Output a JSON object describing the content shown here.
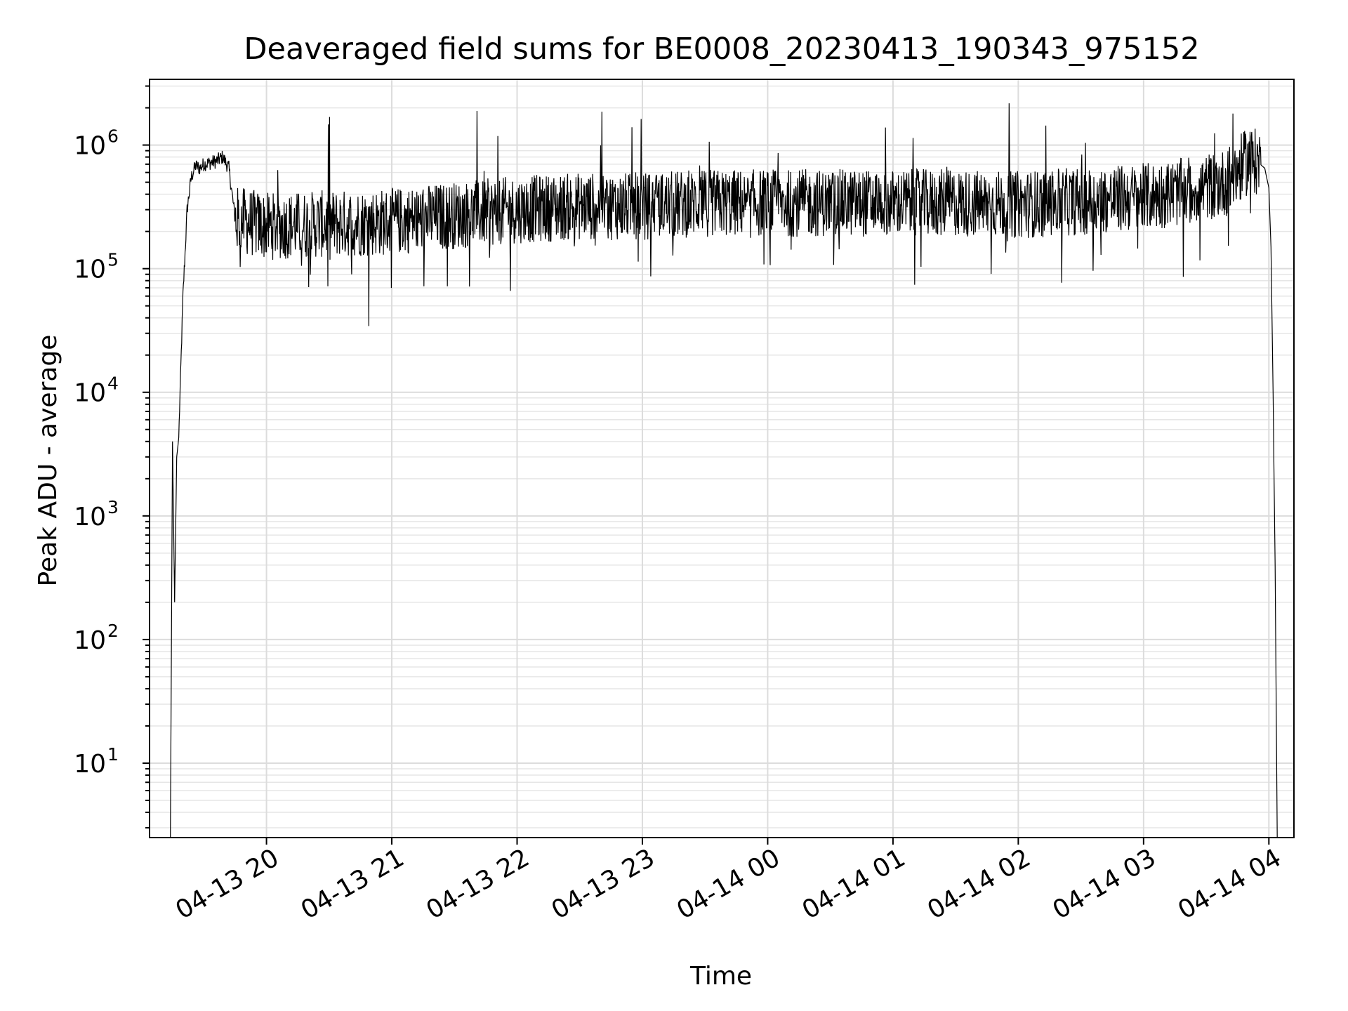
{
  "chart_data": {
    "type": "line",
    "title": "Deaveraged field sums for BE0008_20230413_190343_975152",
    "xlabel": "Time",
    "ylabel": "Peak ADU - average",
    "yscale": "log",
    "ylim": [
      2.5,
      3400000
    ],
    "xlim": [
      "2023-04-13 19:04",
      "2023-04-14 04:12"
    ],
    "grid": true,
    "line_color": "#000000",
    "x_ticks": [
      {
        "value": "2023-04-13 20:00",
        "label": "04-13 20"
      },
      {
        "value": "2023-04-13 21:00",
        "label": "04-13 21"
      },
      {
        "value": "2023-04-13 22:00",
        "label": "04-13 22"
      },
      {
        "value": "2023-04-13 23:00",
        "label": "04-13 23"
      },
      {
        "value": "2023-04-14 00:00",
        "label": "04-14 00"
      },
      {
        "value": "2023-04-14 01:00",
        "label": "04-14 01"
      },
      {
        "value": "2023-04-14 02:00",
        "label": "04-14 02"
      },
      {
        "value": "2023-04-14 03:00",
        "label": "04-14 03"
      },
      {
        "value": "2023-04-14 04:00",
        "label": "04-14 04"
      }
    ],
    "y_ticks": [
      {
        "value": 10,
        "base": "10",
        "exp": "1"
      },
      {
        "value": 100,
        "base": "10",
        "exp": "2"
      },
      {
        "value": 1000,
        "base": "10",
        "exp": "3"
      },
      {
        "value": 10000,
        "base": "10",
        "exp": "4"
      },
      {
        "value": 100000,
        "base": "10",
        "exp": "5"
      },
      {
        "value": 1000000,
        "base": "10",
        "exp": "6"
      }
    ],
    "series": [
      {
        "x": [
          "2023-04-13 19:14",
          "2023-04-13 19:15",
          "2023-04-13 19:16",
          "2023-04-13 19:17",
          "2023-04-13 19:18",
          "2023-04-13 19:20",
          "2023-04-13 19:22",
          "2023-04-13 19:24",
          "2023-04-13 19:26",
          "2023-04-13 19:28",
          "2023-04-13 19:30",
          "2023-04-13 19:33",
          "2023-04-13 19:36",
          "2023-04-13 19:39",
          "2023-04-13 19:42",
          "2023-04-13 19:45",
          "2023-04-13 19:50",
          "2023-04-13 20:00",
          "2023-04-13 20:30",
          "2023-04-13 21:00",
          "2023-04-13 21:30",
          "2023-04-13 22:00",
          "2023-04-13 22:30",
          "2023-04-13 23:00",
          "2023-04-13 23:30",
          "2023-04-14 00:00",
          "2023-04-14 00:30",
          "2023-04-14 01:00",
          "2023-04-14 01:30",
          "2023-04-14 02:00",
          "2023-04-14 02:30",
          "2023-04-14 03:00",
          "2023-04-14 03:20",
          "2023-04-14 03:40",
          "2023-04-14 03:50",
          "2023-04-14 03:55",
          "2023-04-14 03:58",
          "2023-04-14 04:00",
          "2023-04-14 04:01",
          "2023-04-14 04:02",
          "2023-04-14 04:03",
          "2023-04-14 04:04",
          "2023-04-14 04:05"
        ],
        "y": [
          2.5,
          4000,
          200,
          3000,
          4300,
          60000,
          300000,
          550000,
          680000,
          650000,
          700000,
          720000,
          740000,
          800000,
          650000,
          250000,
          240000,
          220000,
          230000,
          240000,
          270000,
          300000,
          320000,
          320000,
          340000,
          340000,
          340000,
          340000,
          340000,
          330000,
          350000,
          380000,
          420000,
          500000,
          750000,
          720000,
          650000,
          450000,
          150000,
          10000,
          400,
          2.5,
          2.5
        ]
      }
    ]
  }
}
